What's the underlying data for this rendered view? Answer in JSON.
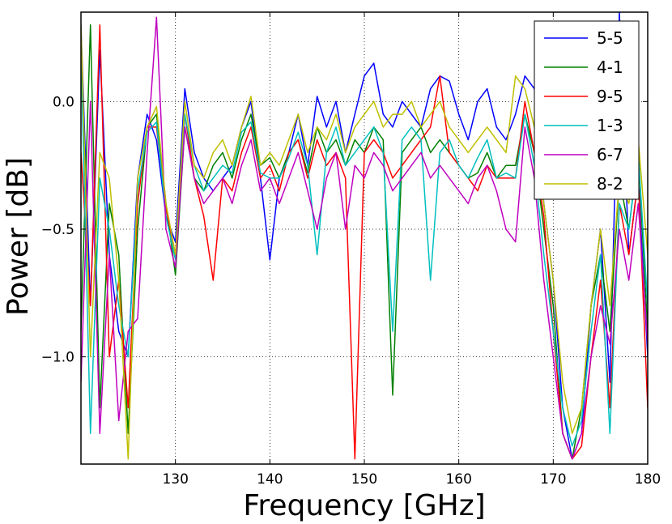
{
  "chart_data": {
    "type": "line",
    "title": "",
    "xlabel": "Frequency [GHz]",
    "ylabel": "Power [dB]",
    "xlim": [
      120,
      180
    ],
    "ylim": [
      -1.42,
      0.35
    ],
    "xticks": [
      130,
      140,
      150,
      160,
      170,
      180
    ],
    "xtick_labels": [
      "130",
      "140",
      "150",
      "160",
      "170",
      "180"
    ],
    "yticks": [
      0.0,
      -0.5,
      -1.0
    ],
    "ytick_labels": [
      "0.0",
      "−0.5",
      "−1.0"
    ],
    "grid": true,
    "legend_position": "upper right",
    "series": [
      {
        "name": "5-5",
        "color": "#0000ff",
        "x": [
          120,
          121,
          122,
          123,
          124,
          125,
          126,
          127,
          128,
          129,
          130,
          131,
          132,
          133,
          134,
          135,
          136,
          137,
          138,
          139,
          140,
          141,
          142,
          143,
          144,
          145,
          146,
          147,
          148,
          149,
          150,
          151,
          152,
          153,
          154,
          155,
          156,
          157,
          158,
          159,
          160,
          161,
          162,
          163,
          164,
          165,
          166,
          167,
          168,
          169,
          170,
          171,
          172,
          173,
          174,
          175,
          176,
          177,
          178,
          179,
          180
        ],
        "y": [
          0.3,
          -0.8,
          0.2,
          -0.6,
          -0.9,
          -1.0,
          -0.3,
          -0.05,
          -0.15,
          -0.45,
          -0.55,
          0.05,
          -0.2,
          -0.3,
          -0.35,
          -0.3,
          -0.25,
          -0.1,
          0.0,
          -0.3,
          -0.62,
          -0.3,
          -0.2,
          -0.05,
          -0.25,
          0.02,
          -0.1,
          0.0,
          -0.2,
          -0.05,
          0.1,
          0.15,
          -0.05,
          -0.1,
          0.0,
          -0.05,
          -0.1,
          0.05,
          0.1,
          0.08,
          -0.05,
          -0.15,
          0.0,
          0.05,
          -0.1,
          -0.15,
          -0.05,
          0.1,
          0.05,
          -0.4,
          -0.7,
          -1.2,
          -1.4,
          -1.3,
          -0.8,
          -0.5,
          -1.1,
          0.35,
          -0.6,
          -0.3,
          -1.0
        ]
      },
      {
        "name": "4-1",
        "color": "#008000",
        "x": [
          120,
          121,
          122,
          123,
          124,
          125,
          126,
          127,
          128,
          129,
          130,
          131,
          132,
          133,
          134,
          135,
          136,
          137,
          138,
          139,
          140,
          141,
          142,
          143,
          144,
          145,
          146,
          147,
          148,
          149,
          150,
          151,
          152,
          153,
          154,
          155,
          156,
          157,
          158,
          159,
          160,
          161,
          162,
          163,
          164,
          165,
          166,
          167,
          168,
          169,
          170,
          171,
          172,
          173,
          174,
          175,
          176,
          177,
          178,
          179,
          180
        ],
        "y": [
          -0.9,
          0.3,
          -1.2,
          -0.4,
          -0.6,
          -1.3,
          -0.5,
          -0.1,
          -0.05,
          -0.4,
          -0.68,
          -0.1,
          -0.3,
          -0.35,
          -0.25,
          -0.2,
          -0.3,
          -0.15,
          -0.05,
          -0.25,
          -0.22,
          -0.3,
          -0.2,
          -0.15,
          -0.28,
          -0.1,
          -0.2,
          -0.15,
          -0.25,
          -0.15,
          -0.2,
          -0.1,
          -0.15,
          -1.15,
          -0.2,
          -0.15,
          -0.1,
          -0.2,
          -0.15,
          -0.2,
          -0.25,
          -0.3,
          -0.28,
          -0.2,
          -0.3,
          -0.25,
          -0.25,
          -0.05,
          -0.2,
          -0.5,
          -0.8,
          -1.3,
          -1.4,
          -1.2,
          -0.8,
          -0.6,
          -0.9,
          -0.3,
          -0.5,
          -0.2,
          -0.9
        ]
      },
      {
        "name": "9-5",
        "color": "#ff0000",
        "x": [
          120,
          121,
          122,
          123,
          124,
          125,
          126,
          127,
          128,
          129,
          130,
          131,
          132,
          133,
          134,
          135,
          136,
          137,
          138,
          139,
          140,
          141,
          142,
          143,
          144,
          145,
          146,
          147,
          148,
          149,
          150,
          151,
          152,
          153,
          154,
          155,
          156,
          157,
          158,
          159,
          160,
          161,
          162,
          163,
          164,
          165,
          166,
          167,
          168,
          169,
          170,
          171,
          172,
          173,
          174,
          175,
          176,
          177,
          178,
          179,
          180
        ],
        "y": [
          -0.2,
          -0.8,
          0.3,
          -1.0,
          -0.7,
          -1.2,
          -0.4,
          -0.1,
          -0.1,
          -0.42,
          -0.6,
          -0.05,
          -0.3,
          -0.45,
          -0.7,
          -0.3,
          -0.35,
          -0.2,
          -0.1,
          -0.3,
          -0.25,
          -0.35,
          -0.2,
          -0.15,
          -0.3,
          -0.15,
          -0.25,
          -0.2,
          -0.3,
          -1.4,
          -0.2,
          -0.15,
          -0.2,
          -0.3,
          -0.25,
          -0.2,
          -0.15,
          -0.1,
          0.1,
          -0.2,
          -0.25,
          -0.3,
          -0.35,
          -0.25,
          -0.3,
          -0.3,
          -0.3,
          0.0,
          -0.2,
          -0.45,
          -0.9,
          -1.3,
          -1.4,
          -1.35,
          -1.0,
          -0.7,
          -1.2,
          -0.4,
          -0.6,
          -0.3,
          -1.2
        ]
      },
      {
        "name": "1-3",
        "color": "#00bfbf",
        "x": [
          120,
          121,
          122,
          123,
          124,
          125,
          126,
          127,
          128,
          129,
          130,
          131,
          132,
          133,
          134,
          135,
          136,
          137,
          138,
          139,
          140,
          141,
          142,
          143,
          144,
          145,
          146,
          147,
          148,
          149,
          150,
          151,
          152,
          153,
          154,
          155,
          156,
          157,
          158,
          159,
          160,
          161,
          162,
          163,
          164,
          165,
          166,
          167,
          168,
          169,
          170,
          171,
          172,
          173,
          174,
          175,
          176,
          177,
          178,
          179,
          180
        ],
        "y": [
          0.2,
          -1.3,
          -0.3,
          -0.5,
          -0.8,
          -1.0,
          -0.35,
          -0.12,
          -0.08,
          -0.45,
          -0.62,
          -0.05,
          -0.25,
          -0.35,
          -0.3,
          -0.25,
          -0.28,
          -0.12,
          -0.08,
          -0.28,
          -0.3,
          -0.3,
          -0.22,
          -0.12,
          -0.25,
          -0.6,
          -0.2,
          -0.1,
          -0.25,
          -0.2,
          -0.15,
          -0.1,
          -0.2,
          -0.9,
          -0.15,
          -0.1,
          -0.15,
          -0.7,
          -0.2,
          -0.15,
          -0.25,
          -0.3,
          -0.22,
          -0.15,
          -0.3,
          -0.28,
          -0.3,
          -0.05,
          -0.25,
          -0.6,
          -0.9,
          -1.2,
          -1.35,
          -1.25,
          -0.9,
          -0.6,
          -1.3,
          -0.4,
          -0.5,
          -0.2,
          -0.8
        ]
      },
      {
        "name": "6-7",
        "color": "#bf00bf",
        "x": [
          120,
          121,
          122,
          123,
          124,
          125,
          126,
          127,
          128,
          129,
          130,
          131,
          132,
          133,
          134,
          135,
          136,
          137,
          138,
          139,
          140,
          141,
          142,
          143,
          144,
          145,
          146,
          147,
          148,
          149,
          150,
          151,
          152,
          153,
          154,
          155,
          156,
          157,
          158,
          159,
          160,
          161,
          162,
          163,
          164,
          165,
          166,
          167,
          168,
          169,
          170,
          171,
          172,
          173,
          174,
          175,
          176,
          177,
          178,
          179,
          180
        ],
        "y": [
          -1.1,
          0.0,
          -1.3,
          -0.6,
          -1.25,
          -0.9,
          -0.85,
          -0.2,
          0.33,
          -0.5,
          -0.65,
          -0.1,
          -0.3,
          -0.4,
          -0.35,
          -0.3,
          -0.4,
          -0.25,
          -0.15,
          -0.35,
          -0.3,
          -0.4,
          -0.3,
          -0.2,
          -0.35,
          -0.5,
          -0.3,
          -0.2,
          -0.5,
          -0.25,
          -0.3,
          -0.2,
          -0.25,
          -0.35,
          -0.3,
          -0.25,
          -0.2,
          -0.3,
          -0.25,
          -0.3,
          -0.35,
          -0.4,
          -0.3,
          -0.25,
          -0.35,
          -0.5,
          -0.55,
          -0.1,
          -0.3,
          -0.7,
          -1.0,
          -1.3,
          -1.4,
          -1.3,
          -1.0,
          -0.8,
          -0.95,
          -0.5,
          -0.7,
          -0.4,
          -0.95
        ]
      },
      {
        "name": "8-2",
        "color": "#bfbf00",
        "x": [
          120,
          121,
          122,
          123,
          124,
          125,
          126,
          127,
          128,
          129,
          130,
          131,
          132,
          133,
          134,
          135,
          136,
          137,
          138,
          139,
          140,
          141,
          142,
          143,
          144,
          145,
          146,
          147,
          148,
          149,
          150,
          151,
          152,
          153,
          154,
          155,
          156,
          157,
          158,
          159,
          160,
          161,
          162,
          163,
          164,
          165,
          166,
          167,
          168,
          169,
          170,
          171,
          172,
          173,
          174,
          175,
          176,
          177,
          178,
          179,
          180
        ],
        "y": [
          0.3,
          -1.0,
          -0.2,
          -0.3,
          -0.7,
          -1.4,
          -0.3,
          -0.1,
          -0.02,
          -0.4,
          -0.6,
          0.0,
          -0.25,
          -0.3,
          -0.2,
          -0.15,
          -0.25,
          -0.1,
          0.02,
          -0.25,
          -0.2,
          -0.25,
          -0.15,
          -0.05,
          -0.2,
          -0.1,
          -0.15,
          -0.05,
          -0.2,
          -0.1,
          -0.05,
          0.0,
          -0.1,
          -0.05,
          -0.05,
          0.0,
          -0.1,
          -0.05,
          0.0,
          -0.1,
          -0.15,
          -0.2,
          -0.15,
          -0.1,
          -0.15,
          -0.2,
          0.1,
          0.05,
          -0.1,
          -0.4,
          -0.7,
          -1.1,
          -1.3,
          -1.2,
          -0.8,
          -0.5,
          -0.8,
          -0.3,
          -0.4,
          -0.15,
          -0.6
        ]
      }
    ]
  }
}
